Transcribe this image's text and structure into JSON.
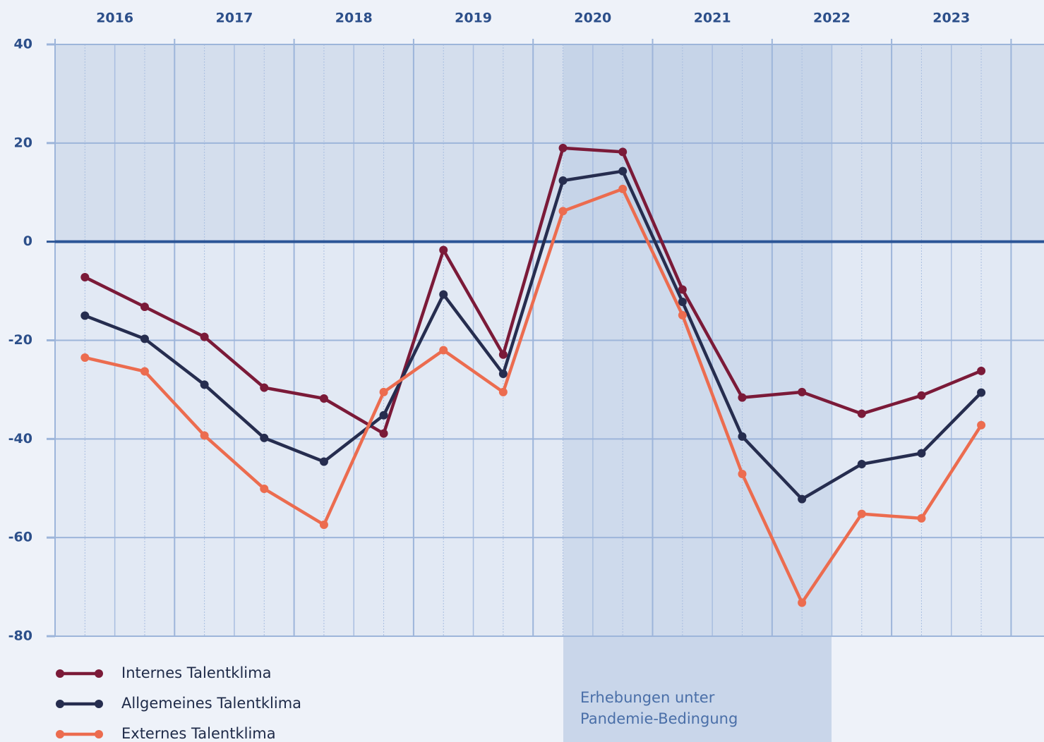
{
  "chart_data": {
    "type": "line",
    "years": [
      "2016",
      "2017",
      "2018",
      "2019",
      "2020",
      "2021",
      "2022",
      "2023"
    ],
    "annotation": "Erhebungen unter Pandemie-Bedingung",
    "ylim": [
      -80,
      40
    ],
    "yticks": [
      40,
      20,
      0,
      -20,
      -40,
      -60,
      -80
    ],
    "grid": true,
    "series": [
      {
        "name": "Internes Talentklima",
        "color": "#7b1a38",
        "values": [
          -7.2,
          -13.2,
          -19.3,
          -29.6,
          -31.8,
          -38.9,
          -1.7,
          -22.9,
          19.0,
          18.2,
          -9.7,
          -31.6,
          -30.5,
          -34.9,
          -31.2,
          -26.2
        ]
      },
      {
        "name": "Allgemeines Talentklima",
        "color": "#262d4f",
        "values": [
          -15.0,
          -19.7,
          -29.0,
          -39.8,
          -44.6,
          -35.2,
          -10.7,
          -26.8,
          12.4,
          14.3,
          -12.2,
          -39.5,
          -52.2,
          -45.1,
          -42.9,
          -30.6
        ]
      },
      {
        "name": "Externes Talentklima",
        "color": "#ec6c4f",
        "values": [
          -23.5,
          -26.3,
          -39.3,
          -50.1,
          -57.4,
          -30.5,
          -22.0,
          -30.5,
          6.2,
          10.7,
          -14.9,
          -47.1,
          -73.2,
          -55.2,
          -56.1,
          -37.2
        ]
      }
    ]
  }
}
